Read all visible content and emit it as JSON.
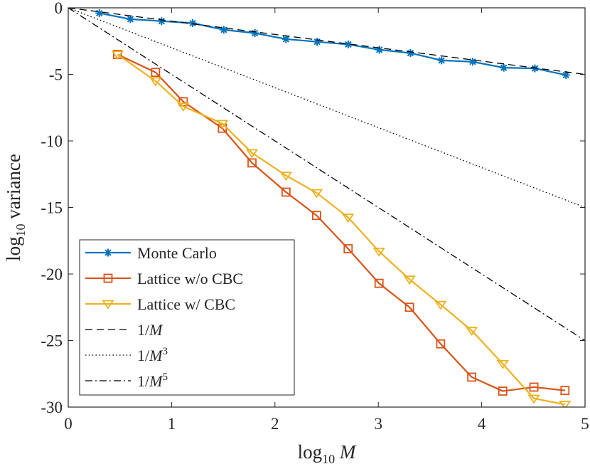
{
  "chart_data": {
    "type": "line",
    "title": "",
    "xlabel": "log",
    "xlabel_subscript": "10",
    "xlabel_var": "M",
    "ylabel": "log",
    "ylabel_subscript": "10",
    "ylabel_rest": "variance",
    "xlim": [
      0,
      5
    ],
    "ylim": [
      -30,
      0
    ],
    "xticks": [
      0,
      1,
      2,
      3,
      4,
      5
    ],
    "xtick_labels": [
      "0",
      "1",
      "2",
      "3",
      "4",
      "5"
    ],
    "yticks": [
      0,
      -5,
      -10,
      -15,
      -20,
      -25,
      -30
    ],
    "ytick_labels": [
      "0",
      "-5",
      "-10",
      "-15",
      "-20",
      "-25",
      "-30"
    ],
    "grid": false,
    "legend_position": "bottom-left",
    "series": [
      {
        "name": "Monte Carlo",
        "color": "#0072BD",
        "marker": "asterisk",
        "line": "solid",
        "x": [
          0.301,
          0.602,
          0.903,
          1.204,
          1.505,
          1.806,
          2.107,
          2.408,
          2.709,
          3.01,
          3.311,
          3.612,
          3.913,
          4.214,
          4.515,
          4.816
        ],
        "y": [
          -0.4,
          -0.85,
          -1.0,
          -1.15,
          -1.65,
          -1.9,
          -2.35,
          -2.55,
          -2.75,
          -3.15,
          -3.4,
          -3.95,
          -4.05,
          -4.5,
          -4.55,
          -5.05
        ]
      },
      {
        "name": "Lattice w/o CBC",
        "color": "#D95319",
        "marker": "square",
        "line": "solid",
        "x": [
          0.477,
          0.845,
          1.113,
          1.491,
          1.778,
          2.107,
          2.403,
          2.708,
          3.007,
          3.302,
          3.603,
          3.904,
          4.204,
          4.505,
          4.806
        ],
        "y": [
          -3.5,
          -4.85,
          -7.05,
          -9.05,
          -11.65,
          -13.85,
          -15.6,
          -18.1,
          -20.7,
          -22.5,
          -25.25,
          -27.75,
          -28.8,
          -28.5,
          -28.75
        ]
      },
      {
        "name": "Lattice w/ CBC",
        "color": "#EDB120",
        "marker": "triangle-down",
        "line": "solid",
        "x": [
          0.477,
          0.845,
          1.113,
          1.491,
          1.778,
          2.107,
          2.403,
          2.708,
          3.007,
          3.302,
          3.603,
          3.904,
          4.204,
          4.505,
          4.806
        ],
        "y": [
          -3.5,
          -5.5,
          -7.4,
          -8.7,
          -10.9,
          -12.6,
          -13.9,
          -15.75,
          -18.3,
          -20.4,
          -22.3,
          -24.25,
          -26.75,
          -29.35,
          -29.8
        ]
      },
      {
        "name": "1/M",
        "legend_base": "1/",
        "legend_var": "M",
        "legend_exp": "",
        "color": "#000000",
        "marker": "none",
        "line": "dashed",
        "x": [
          0,
          5
        ],
        "y": [
          0,
          -5
        ]
      },
      {
        "name": "1/M^3",
        "legend_base": "1/",
        "legend_var": "M",
        "legend_exp": "3",
        "color": "#000000",
        "marker": "none",
        "line": "dotted",
        "x": [
          0,
          5
        ],
        "y": [
          0,
          -15
        ]
      },
      {
        "name": "1/M^5",
        "legend_base": "1/",
        "legend_var": "M",
        "legend_exp": "5",
        "color": "#000000",
        "marker": "none",
        "line": "dashdot",
        "x": [
          0,
          5
        ],
        "y": [
          0,
          -25
        ]
      }
    ]
  }
}
